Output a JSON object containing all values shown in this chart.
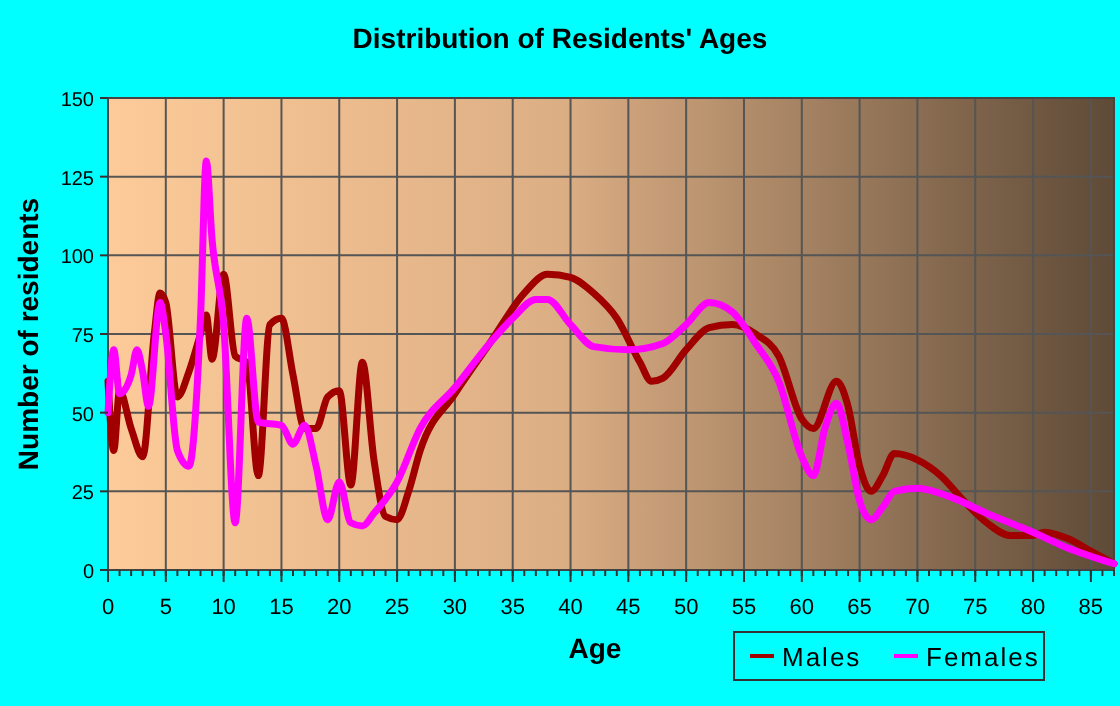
{
  "chart_data": {
    "type": "line",
    "title": "Distribution of Residents' Ages",
    "xlabel": "Age",
    "ylabel": "Number of residents",
    "xlim": [
      0,
      87
    ],
    "xticks": [
      0,
      5,
      10,
      15,
      20,
      25,
      30,
      35,
      40,
      45,
      50,
      55,
      60,
      65,
      70,
      75,
      80,
      85
    ],
    "ylim": [
      0,
      150
    ],
    "yticks": [
      0,
      25,
      50,
      75,
      100,
      125,
      150
    ],
    "grid": true,
    "legend": "bottom right",
    "line_style": "solid",
    "marker": "none",
    "series": [
      {
        "name": "Males",
        "color": "#a00000",
        "x": [
          0,
          0.5,
          1,
          2,
          3,
          4,
          4.5,
          5,
          6,
          7,
          8,
          8.5,
          9,
          10,
          11,
          12,
          13,
          14,
          15,
          16,
          17,
          18,
          19,
          20,
          21,
          22,
          23,
          24,
          25,
          26,
          27,
          30,
          33,
          36,
          38,
          40,
          42,
          44,
          46,
          47,
          48,
          50,
          52,
          54,
          56,
          58,
          60,
          61,
          63,
          64,
          65,
          66,
          67,
          68,
          70,
          72,
          74,
          76,
          78,
          80,
          81,
          83,
          85,
          87
        ],
        "values": [
          60,
          38,
          57,
          45,
          36,
          75,
          88,
          85,
          55,
          63,
          75,
          81,
          67,
          94,
          68,
          66,
          30,
          78,
          80,
          62,
          45,
          45,
          55,
          57,
          27,
          66,
          35,
          17,
          16,
          25,
          38,
          56,
          72,
          88,
          94,
          93,
          88,
          80,
          66,
          60,
          61,
          70,
          77,
          78,
          75,
          68,
          48,
          45,
          60,
          52,
          33,
          25,
          30,
          37,
          35,
          30,
          22,
          15,
          11,
          11,
          12,
          10,
          6,
          2
        ]
      },
      {
        "name": "Females",
        "color": "#ff00ff",
        "x": [
          0,
          0.5,
          1,
          2,
          2.5,
          3,
          3.5,
          4.5,
          5,
          6,
          7,
          8,
          8.5,
          9,
          10,
          11,
          12,
          13,
          15,
          16,
          17,
          18,
          19,
          20,
          21,
          22,
          23,
          25,
          27,
          30,
          33,
          35,
          37,
          38,
          40,
          42,
          45,
          48,
          50,
          52,
          54,
          56,
          58,
          60,
          61,
          62,
          63,
          64,
          65,
          66,
          67,
          68,
          70,
          73,
          76,
          80,
          83,
          87
        ],
        "values": [
          50,
          70,
          56,
          62,
          70,
          63,
          52,
          85,
          75,
          38,
          33,
          80,
          130,
          105,
          78,
          15,
          80,
          47,
          46,
          40,
          46,
          33,
          16,
          28,
          15,
          14,
          18,
          28,
          45,
          58,
          72,
          80,
          86,
          86,
          78,
          71,
          70,
          72,
          78,
          85,
          82,
          72,
          60,
          36,
          30,
          45,
          53,
          40,
          22,
          16,
          20,
          25,
          26,
          23,
          18,
          12,
          7,
          2
        ]
      }
    ]
  }
}
